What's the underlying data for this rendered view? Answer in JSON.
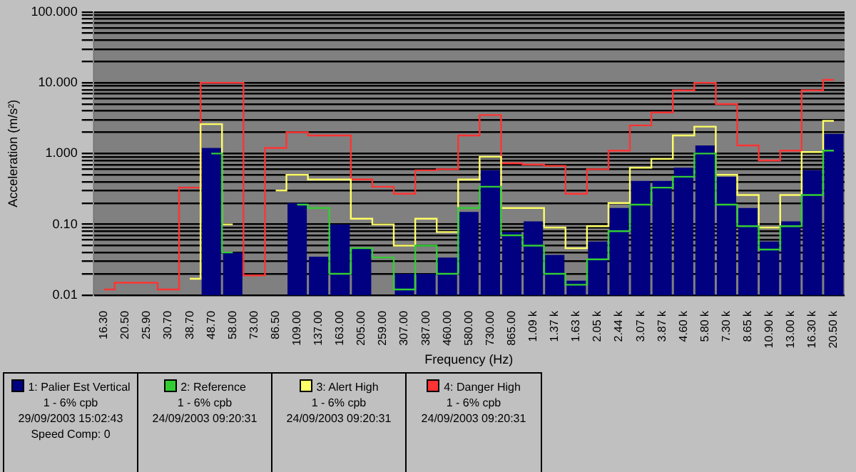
{
  "chart_data": {
    "type": "bar",
    "xlabel": "Frequency (Hz)",
    "ylabel": "Acceleration (m/s²)",
    "categories": [
      "16.30",
      "20.50",
      "25.90",
      "30.70",
      "38.70",
      "48.70",
      "58.00",
      "73.00",
      "86.50",
      "109.00",
      "137.00",
      "163.00",
      "205.00",
      "259.00",
      "307.00",
      "387.00",
      "460.00",
      "580.00",
      "730.00",
      "865.00",
      "1.09 k",
      "1.37 k",
      "1.63 k",
      "2.05 k",
      "2.44 k",
      "3.07 k",
      "3.87 k",
      "4.60 k",
      "5.80 k",
      "7.30 k",
      "8.65 k",
      "10.90 k",
      "13.00 k",
      "16.30 k",
      "20.50 k"
    ],
    "log": "y",
    "ylim": [
      0.01,
      100
    ],
    "yticks": [
      {
        "value": 0.01,
        "label": "0.01"
      },
      {
        "value": 0.02,
        "label": null
      },
      {
        "value": 0.03,
        "label": null
      },
      {
        "value": 0.04,
        "label": null
      },
      {
        "value": 0.05,
        "label": null
      },
      {
        "value": 0.06,
        "label": null
      },
      {
        "value": 0.07,
        "label": null
      },
      {
        "value": 0.08,
        "label": null
      },
      {
        "value": 0.09,
        "label": null
      },
      {
        "value": 0.1,
        "label": "0.10"
      },
      {
        "value": 0.2,
        "label": null
      },
      {
        "value": 0.3,
        "label": null
      },
      {
        "value": 0.4,
        "label": null
      },
      {
        "value": 0.5,
        "label": null
      },
      {
        "value": 0.6,
        "label": null
      },
      {
        "value": 0.7,
        "label": null
      },
      {
        "value": 0.8,
        "label": null
      },
      {
        "value": 0.9,
        "label": null
      },
      {
        "value": 1,
        "label": "1.000"
      },
      {
        "value": 2,
        "label": null
      },
      {
        "value": 3,
        "label": null
      },
      {
        "value": 4,
        "label": null
      },
      {
        "value": 5,
        "label": null
      },
      {
        "value": 6,
        "label": null
      },
      {
        "value": 7,
        "label": null
      },
      {
        "value": 8,
        "label": null
      },
      {
        "value": 9,
        "label": null
      },
      {
        "value": 10,
        "label": "10.000"
      },
      {
        "value": 20,
        "label": null
      },
      {
        "value": 30,
        "label": null
      },
      {
        "value": 40,
        "label": null
      },
      {
        "value": 50,
        "label": null
      },
      {
        "value": 60,
        "label": null
      },
      {
        "value": 70,
        "label": null
      },
      {
        "value": 80,
        "label": null
      },
      {
        "value": 90,
        "label": null
      },
      {
        "value": 100,
        "label": "100.000"
      }
    ],
    "grid": "y",
    "legend": "bottom left",
    "series": [
      {
        "name": "1: Palier Est Vertical",
        "color": "#000080",
        "values": [
          null,
          null,
          null,
          null,
          null,
          1.2,
          0.04,
          null,
          null,
          0.2,
          0.035,
          0.1,
          0.045,
          null,
          0.02,
          0.02,
          0.034,
          0.15,
          0.58,
          0.078,
          0.11,
          0.037,
          0.016,
          0.057,
          0.17,
          0.41,
          0.41,
          0.63,
          1.3,
          0.47,
          0.17,
          0.057,
          0.11,
          0.58,
          1.9
        ]
      },
      {
        "name": "2: Reference",
        "type": "step",
        "color": "#33cc33",
        "values": [
          null,
          null,
          null,
          null,
          null,
          1.0,
          0.04,
          null,
          null,
          0.19,
          0.17,
          0.02,
          0.046,
          0.034,
          0.012,
          0.05,
          0.02,
          0.17,
          0.34,
          0.07,
          0.05,
          0.02,
          0.014,
          0.032,
          0.08,
          0.19,
          0.33,
          0.47,
          1.0,
          0.19,
          0.094,
          0.044,
          0.094,
          0.26,
          1.1
        ]
      },
      {
        "name": "3: Alert High",
        "type": "step",
        "color": "#ffff66",
        "values": [
          null,
          null,
          null,
          null,
          0.017,
          2.6,
          0.1,
          null,
          0.3,
          0.5,
          0.43,
          0.43,
          0.12,
          0.1,
          0.05,
          0.12,
          0.078,
          0.43,
          0.9,
          0.17,
          0.17,
          0.09,
          0.046,
          0.094,
          0.2,
          0.63,
          0.84,
          1.8,
          2.4,
          0.5,
          0.26,
          0.09,
          0.26,
          1.05,
          2.9
        ]
      },
      {
        "name": "4: Danger High",
        "type": "step",
        "color": "#ff3333",
        "values": [
          0.012,
          0.015,
          0.015,
          0.012,
          0.33,
          10,
          10,
          0.019,
          1.2,
          2,
          1.8,
          1.8,
          0.43,
          0.34,
          0.27,
          0.58,
          0.6,
          1.8,
          3.5,
          0.73,
          0.7,
          0.67,
          0.27,
          0.6,
          1.1,
          2.5,
          3.8,
          7.8,
          10,
          5,
          1.3,
          0.8,
          1.1,
          7.8,
          11
        ]
      }
    ],
    "annotations": [
      "1 - 6% cpb\n29/09/2003 15:02:43\nSpeed Comp: 0",
      "1 - 6% cpb\n24/09/2003 09:20:31",
      "1 - 6% cpb\n24/09/2003 09:20:31",
      "1 - 6% cpb\n24/09/2003 09:20:31"
    ]
  }
}
